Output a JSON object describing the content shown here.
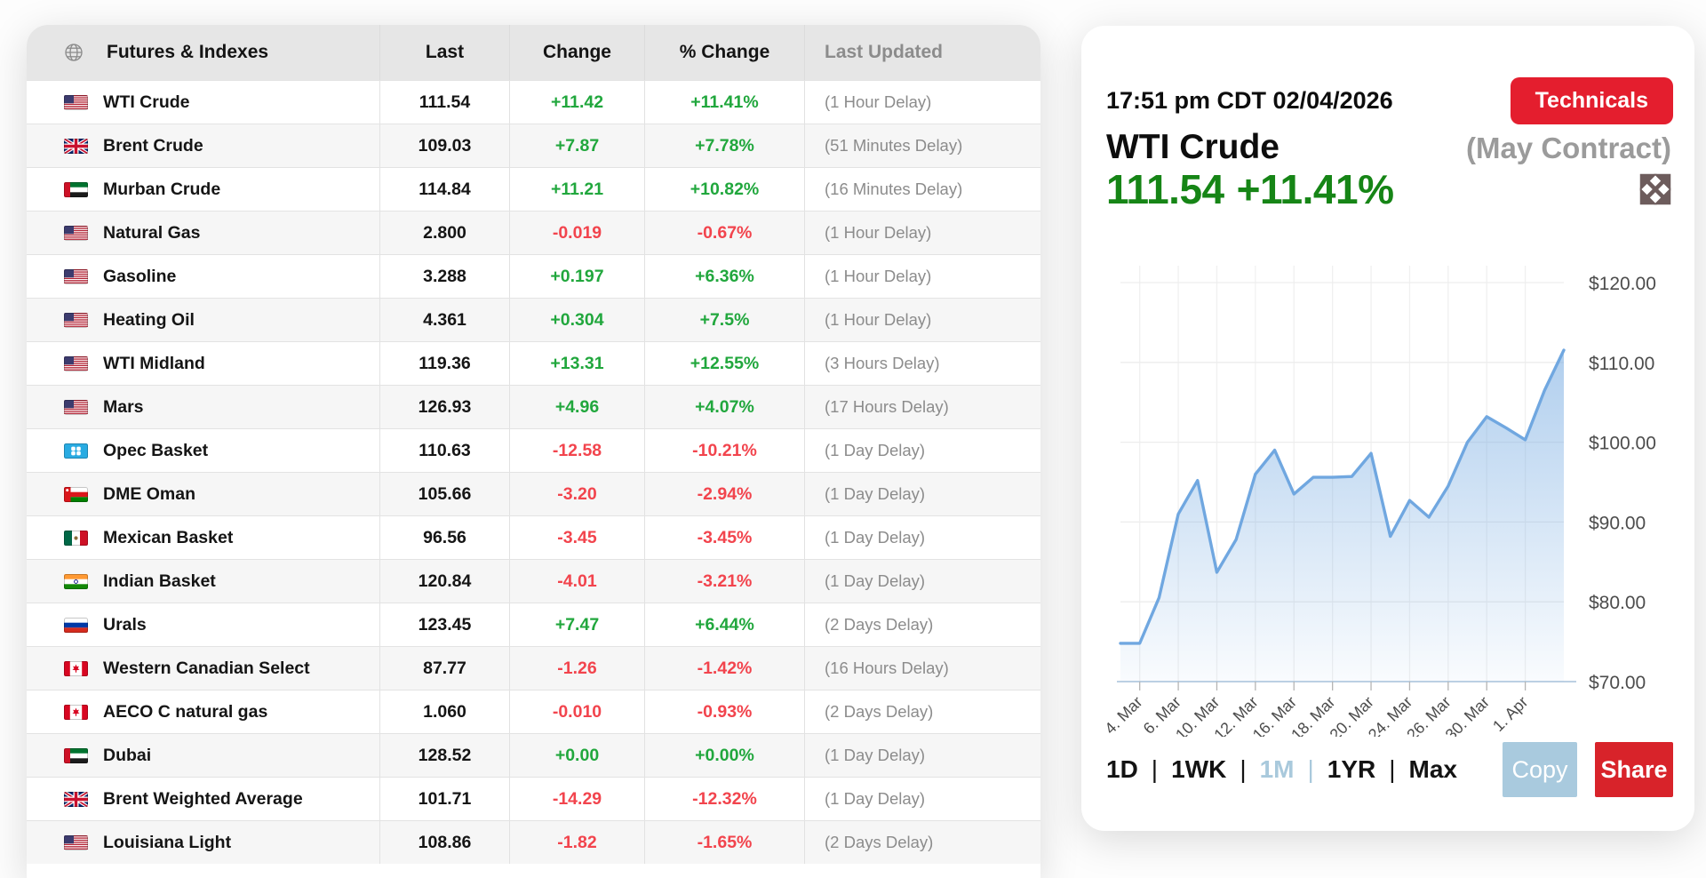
{
  "table": {
    "headers": {
      "name": "Futures & Indexes",
      "last": "Last",
      "change": "Change",
      "pct": "% Change",
      "updated": "Last Updated"
    },
    "rows": [
      {
        "name": "WTI Crude",
        "flag": "us",
        "last": "111.54",
        "change": "+11.42",
        "pct": "+11.41%",
        "updated": "(1 Hour Delay)"
      },
      {
        "name": "Brent Crude",
        "flag": "uk",
        "last": "109.03",
        "change": "+7.87",
        "pct": "+7.78%",
        "updated": "(51 Minutes Delay)"
      },
      {
        "name": "Murban Crude",
        "flag": "uae",
        "last": "114.84",
        "change": "+11.21",
        "pct": "+10.82%",
        "updated": "(16 Minutes Delay)"
      },
      {
        "name": "Natural Gas",
        "flag": "us",
        "last": "2.800",
        "change": "-0.019",
        "pct": "-0.67%",
        "updated": "(1 Hour Delay)"
      },
      {
        "name": "Gasoline",
        "flag": "us",
        "last": "3.288",
        "change": "+0.197",
        "pct": "+6.36%",
        "updated": "(1 Hour Delay)"
      },
      {
        "name": "Heating Oil",
        "flag": "us",
        "last": "4.361",
        "change": "+0.304",
        "pct": "+7.5%",
        "updated": "(1 Hour Delay)"
      },
      {
        "name": "WTI Midland",
        "flag": "us",
        "last": "119.36",
        "change": "+13.31",
        "pct": "+12.55%",
        "updated": "(3 Hours Delay)"
      },
      {
        "name": "Mars",
        "flag": "us",
        "last": "126.93",
        "change": "+4.96",
        "pct": "+4.07%",
        "updated": "(17 Hours Delay)"
      },
      {
        "name": "Opec Basket",
        "flag": "opec",
        "last": "110.63",
        "change": "-12.58",
        "pct": "-10.21%",
        "updated": "(1 Day Delay)"
      },
      {
        "name": "DME Oman",
        "flag": "oman",
        "last": "105.66",
        "change": "-3.20",
        "pct": "-2.94%",
        "updated": "(1 Day Delay)"
      },
      {
        "name": "Mexican Basket",
        "flag": "mexico",
        "last": "96.56",
        "change": "-3.45",
        "pct": "-3.45%",
        "updated": "(1 Day Delay)"
      },
      {
        "name": "Indian Basket",
        "flag": "india",
        "last": "120.84",
        "change": "-4.01",
        "pct": "-3.21%",
        "updated": "(1 Day Delay)"
      },
      {
        "name": "Urals",
        "flag": "russia",
        "last": "123.45",
        "change": "+7.47",
        "pct": "+6.44%",
        "updated": "(2 Days Delay)"
      },
      {
        "name": "Western Canadian Select",
        "flag": "canada",
        "last": "87.77",
        "change": "-1.26",
        "pct": "-1.42%",
        "updated": "(16 Hours Delay)"
      },
      {
        "name": "AECO C natural gas",
        "flag": "canada",
        "last": "1.060",
        "change": "-0.010",
        "pct": "-0.93%",
        "updated": "(2 Days Delay)"
      },
      {
        "name": "Dubai",
        "flag": "uae",
        "last": "128.52",
        "change": "+0.00",
        "pct": "+0.00%",
        "updated": "(1 Day Delay)"
      },
      {
        "name": "Brent Weighted Average",
        "flag": "uk",
        "last": "101.71",
        "change": "-14.29",
        "pct": "-12.32%",
        "updated": "(1 Day Delay)"
      },
      {
        "name": "Louisiana Light",
        "flag": "us",
        "last": "108.86",
        "change": "-1.82",
        "pct": "-1.65%",
        "updated": "(2 Days Delay)"
      }
    ]
  },
  "panel": {
    "timestamp": "17:51 pm CDT 02/04/2026",
    "technicals_label": "Technicals",
    "title": "WTI Crude",
    "contract": "(May Contract)",
    "price": "111.54",
    "price_change": "+11.41%",
    "ranges": [
      "1D",
      "1WK",
      "1M",
      "1YR",
      "Max"
    ],
    "active_range": "1M",
    "copy_label": "Copy",
    "share_label": "Share"
  },
  "chart_data": {
    "type": "area",
    "title": "WTI Crude (May Contract) — 1M price history",
    "x_tick_labels": [
      "4. Mar",
      "6. Mar",
      "10. Mar",
      "12. Mar",
      "16. Mar",
      "18. Mar",
      "20. Mar",
      "24. Mar",
      "26. Mar",
      "30. Mar",
      "1. Apr"
    ],
    "x_tick_indices": [
      1,
      3,
      5,
      7,
      9,
      11,
      13,
      15,
      17,
      19,
      21
    ],
    "values": [
      74.8,
      74.8,
      80.5,
      91.0,
      95.2,
      83.7,
      87.8,
      96.0,
      99.0,
      93.5,
      95.6,
      95.6,
      95.7,
      98.6,
      88.2,
      92.7,
      90.6,
      94.5,
      100.0,
      103.2,
      101.8,
      100.3,
      106.5,
      111.54
    ],
    "y_tick_labels": [
      "$120.00",
      "$110.00",
      "$100.00",
      "$90.00",
      "$80.00",
      "$70.00"
    ],
    "y_ticks": [
      120,
      110,
      100,
      90,
      80,
      70
    ],
    "ylim": [
      70,
      120
    ],
    "grid": true,
    "legend": "none",
    "ylabel": "",
    "xlabel": ""
  },
  "colors": {
    "up_green": "#21a73d",
    "down_red": "#f2444d",
    "price_green": "#168516",
    "accent_red": "#e41e2e",
    "share_red": "#d8232a",
    "copy_blue": "#a9cade",
    "active_range_blue": "#a9c9dc",
    "chart_line": "#70a7e0",
    "header_gray": "#e6e6e6"
  }
}
